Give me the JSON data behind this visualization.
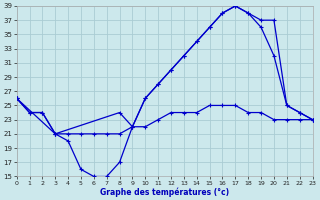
{
  "title": "Graphe des températures (°c)",
  "bg_color": "#cce8ec",
  "line_color": "#0000cc",
  "grid_color": "#aaccd4",
  "ylim": [
    15,
    39
  ],
  "yticks": [
    15,
    17,
    19,
    21,
    23,
    25,
    27,
    29,
    31,
    33,
    35,
    37,
    39
  ],
  "xlim": [
    0,
    23
  ],
  "xticks": [
    0,
    1,
    2,
    3,
    4,
    5,
    6,
    7,
    8,
    9,
    10,
    11,
    12,
    13,
    14,
    15,
    16,
    17,
    18,
    19,
    20,
    21,
    22,
    23
  ],
  "line1_x": [
    0,
    1,
    2,
    3,
    4,
    5,
    6,
    7,
    8,
    9,
    10,
    11,
    12,
    13,
    14,
    15,
    16,
    17,
    18,
    19,
    20,
    21,
    22,
    23
  ],
  "line1_y": [
    26,
    24,
    24,
    21,
    20,
    16,
    15,
    15,
    17,
    22,
    26,
    28,
    30,
    32,
    34,
    36,
    38,
    39,
    38,
    36,
    32,
    25,
    24,
    23
  ],
  "line2_x": [
    0,
    1,
    2,
    3,
    4,
    5,
    6,
    7,
    8,
    9,
    10,
    11,
    12,
    13,
    14,
    15,
    16,
    17,
    18,
    19,
    20,
    21,
    22,
    23
  ],
  "line2_y": [
    26,
    24,
    24,
    21,
    21,
    21,
    21,
    21,
    21,
    22,
    22,
    23,
    24,
    24,
    24,
    25,
    25,
    25,
    24,
    24,
    23,
    23,
    23,
    23
  ],
  "line3_x": [
    0,
    3,
    8,
    9,
    10,
    11,
    12,
    13,
    14,
    15,
    16,
    17,
    18,
    19,
    20,
    21,
    22,
    23
  ],
  "line3_y": [
    26,
    21,
    24,
    22,
    26,
    28,
    30,
    32,
    34,
    36,
    38,
    39,
    38,
    37,
    37,
    25,
    24,
    23
  ]
}
